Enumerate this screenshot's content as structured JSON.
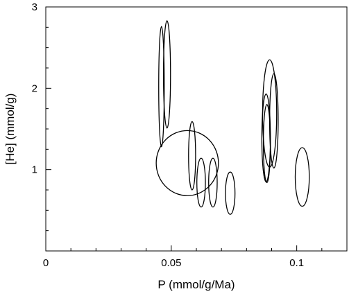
{
  "chart_data": {
    "type": "ellipse",
    "xlabel": "P (mmol/g/Ma)",
    "ylabel": "[He] (mmol/g)",
    "x": [
      0.0461,
      0.0483,
      0.0564,
      0.0583,
      0.0619,
      0.0666,
      0.0735,
      0.0892,
      0.0909,
      0.0878,
      0.0881,
      0.1022
    ],
    "y": [
      2.02,
      2.17,
      1.08,
      1.17,
      0.84,
      0.84,
      0.71,
      1.69,
      1.6,
      1.39,
      1.32,
      0.91
    ],
    "x_err": [
      0.0011,
      0.0014,
      0.0124,
      0.0014,
      0.0017,
      0.0017,
      0.0019,
      0.0028,
      0.0017,
      0.0017,
      0.0014,
      0.0028
    ],
    "y_err": [
      0.74,
      0.66,
      0.4,
      0.42,
      0.3,
      0.3,
      0.26,
      0.66,
      0.58,
      0.54,
      0.48,
      0.36
    ],
    "color": "#000000",
    "xlim": [
      0,
      0.12
    ],
    "ylim": [
      0,
      3
    ],
    "xticks": [
      0,
      0.05,
      0.1
    ],
    "yticks": [
      1,
      2,
      3
    ],
    "xminorticks": [
      0.01,
      0.02,
      0.03,
      0.04,
      0.06,
      0.07,
      0.08,
      0.09,
      0.11
    ],
    "yminorticks": [
      0.25,
      0.5,
      0.75,
      1.25,
      1.5,
      1.75,
      2.25,
      2.5,
      2.75
    ]
  }
}
